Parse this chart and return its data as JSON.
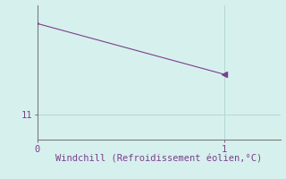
{
  "x": [
    0,
    1
  ],
  "y": [
    13.5,
    12.1
  ],
  "line_color": "#7b3f8c",
  "marker_color": "#7b3f8c",
  "background_color": "#d6f0ee",
  "grid_color": "#aed4d0",
  "axis_color": "#7b7b7b",
  "tick_color": "#7b3f8c",
  "xlabel": "Windchill (Refroidissement éolien,°C)",
  "xlabel_color": "#7b3f8c",
  "ylabel_tick_values": [
    11
  ],
  "ylabel_tick_labels": [
    "11"
  ],
  "xtick_values": [
    0,
    1
  ],
  "xtick_labels": [
    "0",
    "1"
  ],
  "xlim": [
    0,
    1.3
  ],
  "ylim": [
    10.3,
    14.0
  ],
  "xlabel_fontsize": 7.5,
  "tick_fontsize": 7.5
}
